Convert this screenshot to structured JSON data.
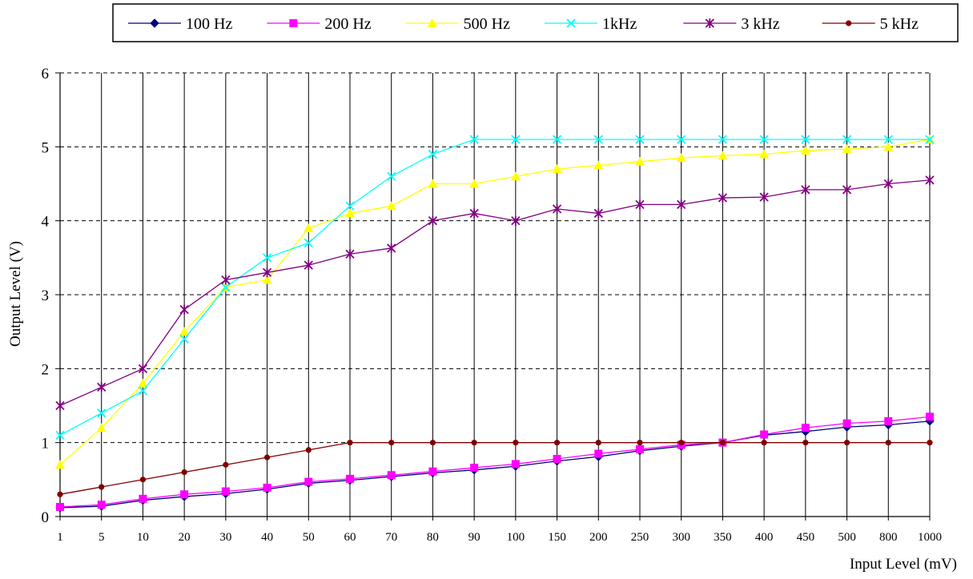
{
  "chart_data": {
    "type": "line",
    "title": "",
    "xlabel": "Input Level (mV)",
    "ylabel": "Output Level (V)",
    "ylim": [
      0,
      6
    ],
    "yticks": [
      0,
      1,
      2,
      3,
      4,
      5,
      6
    ],
    "grid": true,
    "legend_position": "top",
    "categories": [
      "1",
      "5",
      "10",
      "20",
      "30",
      "40",
      "50",
      "60",
      "70",
      "80",
      "90",
      "100",
      "150",
      "200",
      "250",
      "300",
      "350",
      "400",
      "450",
      "500",
      "800",
      "1000"
    ],
    "series": [
      {
        "name": "100 Hz",
        "color": "#000080",
        "marker": "diamond",
        "values": [
          0.12,
          0.14,
          0.22,
          0.27,
          0.31,
          0.37,
          0.45,
          0.49,
          0.54,
          0.59,
          0.63,
          0.68,
          0.75,
          0.81,
          0.89,
          0.95,
          1.0,
          1.1,
          1.15,
          1.21,
          1.24,
          1.29
        ]
      },
      {
        "name": "200 Hz",
        "color": "#ff00ff",
        "marker": "square",
        "values": [
          0.13,
          0.16,
          0.24,
          0.3,
          0.34,
          0.39,
          0.47,
          0.51,
          0.56,
          0.61,
          0.66,
          0.71,
          0.78,
          0.85,
          0.91,
          0.97,
          1.0,
          1.11,
          1.2,
          1.26,
          1.29,
          1.35
        ]
      },
      {
        "name": "500 Hz",
        "color": "#ffff00",
        "marker": "triangle",
        "values": [
          0.7,
          1.2,
          1.8,
          2.5,
          3.1,
          3.2,
          3.9,
          4.1,
          4.2,
          4.5,
          4.5,
          4.6,
          4.7,
          4.75,
          4.8,
          4.85,
          4.88,
          4.9,
          4.95,
          4.97,
          5.0,
          5.1
        ]
      },
      {
        "name": "1kHz",
        "color": "#00ffff",
        "marker": "x",
        "values": [
          1.1,
          1.4,
          1.7,
          2.4,
          3.1,
          3.5,
          3.7,
          4.2,
          4.6,
          4.9,
          5.1,
          5.1,
          5.1,
          5.1,
          5.1,
          5.1,
          5.1,
          5.1,
          5.1,
          5.1,
          5.1,
          5.1
        ]
      },
      {
        "name": "3 kHz",
        "color": "#800080",
        "marker": "star",
        "values": [
          1.5,
          1.75,
          2.0,
          2.8,
          3.2,
          3.3,
          3.4,
          3.55,
          3.63,
          4.0,
          4.1,
          4.0,
          4.16,
          4.1,
          4.22,
          4.22,
          4.31,
          4.32,
          4.42,
          4.42,
          4.5,
          4.55
        ]
      },
      {
        "name": "5 kHz",
        "color": "#800000",
        "marker": "circle",
        "values": [
          0.3,
          0.4,
          0.5,
          0.6,
          0.7,
          0.8,
          0.9,
          1.0,
          1.0,
          1.0,
          1.0,
          1.0,
          1.0,
          1.0,
          1.0,
          1.0,
          1.0,
          1.0,
          1.0,
          1.0,
          1.0,
          1.0
        ]
      }
    ]
  }
}
